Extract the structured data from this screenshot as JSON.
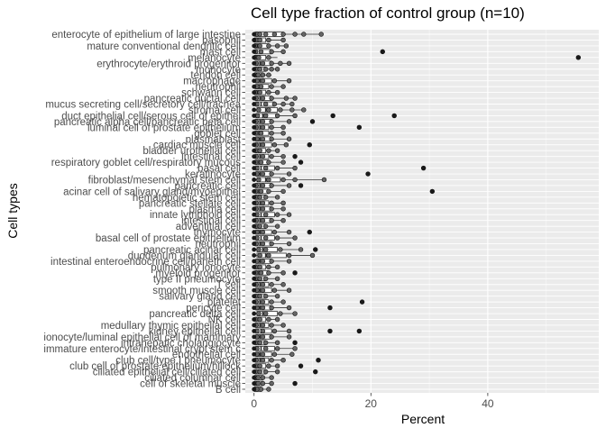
{
  "chart_data": {
    "type": "boxplot",
    "title": "Cell type fraction of control group (n=10)",
    "xlabel": "Percent",
    "ylabel": "Cell types",
    "xlim": [
      -1.5,
      59
    ],
    "xticks": [
      0,
      20,
      40
    ],
    "grid": true,
    "background": "#ebebeb",
    "categories_top_to_bottom": [
      "enterocyte of epithelium of large intestine",
      "basophil",
      "mature conventional dendritic cell",
      "mast cell",
      "melanocyte",
      "erythrocyte/erythroid progenitor",
      "monocyte",
      "tendon cell",
      "macrophage",
      "neutrophil",
      "schwann cell",
      "pancreatic ductal cell",
      "mucus secreting cell/secretory cell/trachea",
      "stromal cell",
      "duct epithelial cell/serous cell of epithel",
      "pancreatic alpha cell/pancreatic beta cell",
      "luminal cell of prostate epithelium",
      "goblet cell",
      "plasmablast",
      "cardiac muscle cell",
      "bladder urothelial cell",
      "intestinal cell",
      "respiratory goblet cell/respiratory mucous",
      "basal cell",
      "keratinocyte",
      "fibroblast/mesenchymal stem cell",
      "pancreatic cell",
      "acinar cell of salivary gland/myoepithel",
      "hematopoietic stem cell",
      "pancreatic stellate cell",
      "plasma cell",
      "innate lymphoid cell",
      "intestinal cell",
      "adventitial cell",
      "thymocyte",
      "basal cell of prostate epithelium",
      "neutrophil",
      "pancreatic acinar cell",
      "duodenum glandular cell",
      "intestinal enteroendocrine cell/paneth cell",
      "pulmonary ionocyte",
      "myeloid progenitor",
      "type II pneumocyte",
      "T cell",
      "smooth muscle cell",
      "salivary gland cell",
      "platelet",
      "pericyte cell",
      "pancreatic delta cell",
      "NK cell",
      "medullary thymic epithelial cell",
      "kidney epithelial cell",
      "ionocyte/luminal epithelial cell of mammary",
      "intrahepatic cholangiocyte",
      "immature enterocyte/intestinal crypt stem c",
      "endothelial cell",
      "club cell/type I pneumocyte",
      "club cell of prostate epithelium/hillock",
      "ciliated epithelial cell/ciliated cell",
      "ciliated columnar cell",
      "cell of skeletal muscle",
      "B cell"
    ],
    "series": [
      {
        "q1": 0.3,
        "median": 1.0,
        "q3": 5.0,
        "whisker_low": 0.0,
        "whisker_high": 11.5,
        "points": [
          0.2,
          0.5,
          1.0,
          2.0,
          3.5,
          5.0,
          7.0,
          8.5,
          11.5
        ]
      },
      {
        "q1": 0.1,
        "median": 0.5,
        "q3": 2.0,
        "whisker_low": 0.0,
        "whisker_high": 5.0,
        "points": [
          0.1,
          0.4,
          1.0,
          2.5,
          5.0
        ]
      },
      {
        "q1": 0.1,
        "median": 0.6,
        "q3": 2.5,
        "whisker_low": 0.0,
        "whisker_high": 5.5,
        "points": [
          0.2,
          1.0,
          2.5,
          4.0,
          5.5
        ]
      },
      {
        "q1": 0.2,
        "median": 1.0,
        "q3": 3.0,
        "whisker_low": 0.0,
        "whisker_high": 5.0,
        "points": [
          0.3,
          1.2,
          3.0,
          5.0,
          22.0
        ]
      },
      {
        "q1": 0.1,
        "median": 0.5,
        "q3": 2.0,
        "whisker_low": 0.0,
        "whisker_high": 4.0,
        "points": [
          0.2,
          0.8,
          2.5,
          55.5
        ]
      },
      {
        "q1": 0.2,
        "median": 1.0,
        "q3": 3.0,
        "whisker_low": 0.0,
        "whisker_high": 6.0,
        "points": [
          0.4,
          1.5,
          3.0,
          4.5,
          6.0
        ]
      },
      {
        "q1": 0.2,
        "median": 0.8,
        "q3": 2.0,
        "whisker_low": 0.0,
        "whisker_high": 4.0,
        "points": [
          0.3,
          1.0,
          2.0,
          3.0,
          4.0
        ]
      },
      {
        "q1": 0.1,
        "median": 0.5,
        "q3": 1.5,
        "whisker_low": 0.0,
        "whisker_high": 3.0,
        "points": [
          0.2,
          0.7,
          1.5,
          2.5
        ]
      },
      {
        "q1": 0.3,
        "median": 1.0,
        "q3": 3.0,
        "whisker_low": 0.0,
        "whisker_high": 6.0,
        "points": [
          0.5,
          1.5,
          3.5,
          6.0
        ]
      },
      {
        "q1": 0.2,
        "median": 0.8,
        "q3": 2.5,
        "whisker_low": 0.0,
        "whisker_high": 5.0,
        "points": [
          0.5,
          1.2,
          3.0,
          5.0
        ]
      },
      {
        "q1": 0.1,
        "median": 0.6,
        "q3": 2.0,
        "whisker_low": 0.0,
        "whisker_high": 4.0,
        "points": [
          0.2,
          1.0,
          2.5,
          4.0
        ]
      },
      {
        "q1": 0.2,
        "median": 1.0,
        "q3": 3.0,
        "whisker_low": 0.0,
        "whisker_high": 7.0,
        "points": [
          0.4,
          1.5,
          3.0,
          5.5,
          7.0
        ]
      },
      {
        "q1": 0.3,
        "median": 1.2,
        "q3": 3.5,
        "whisker_low": 0.0,
        "whisker_high": 6.5,
        "points": [
          0.5,
          2.0,
          3.5,
          5.0,
          6.5
        ]
      },
      {
        "q1": 0.5,
        "median": 2.0,
        "q3": 4.0,
        "whisker_low": 0.0,
        "whisker_high": 8.5,
        "points": [
          0.8,
          2.5,
          4.5,
          6.5,
          8.5
        ]
      },
      {
        "q1": 0.3,
        "median": 1.5,
        "q3": 4.0,
        "whisker_low": 0.0,
        "whisker_high": 7.0,
        "points": [
          0.6,
          2.0,
          4.0,
          7.0,
          13.5,
          24.0
        ]
      },
      {
        "q1": 0.2,
        "median": 1.0,
        "q3": 3.0,
        "whisker_low": 0.0,
        "whisker_high": 6.0,
        "points": [
          0.4,
          1.5,
          3.0,
          6.0,
          10.0
        ]
      },
      {
        "q1": 0.2,
        "median": 1.0,
        "q3": 2.5,
        "whisker_low": 0.0,
        "whisker_high": 5.0,
        "points": [
          0.4,
          1.5,
          3.0,
          5.0,
          18.0
        ]
      },
      {
        "q1": 0.2,
        "median": 0.8,
        "q3": 2.5,
        "whisker_low": 0.0,
        "whisker_high": 5.0,
        "points": [
          0.3,
          1.2,
          3.0,
          5.0
        ]
      },
      {
        "q1": 0.3,
        "median": 1.0,
        "q3": 3.0,
        "whisker_low": 0.0,
        "whisker_high": 6.0,
        "points": [
          0.5,
          1.5,
          3.0,
          6.0
        ]
      },
      {
        "q1": 0.2,
        "median": 1.0,
        "q3": 3.0,
        "whisker_low": 0.0,
        "whisker_high": 5.5,
        "points": [
          0.4,
          1.5,
          3.5,
          5.5,
          9.5
        ]
      },
      {
        "q1": 0.2,
        "median": 0.8,
        "q3": 2.0,
        "whisker_low": 0.0,
        "whisker_high": 4.0,
        "points": [
          0.3,
          1.0,
          2.5,
          4.0
        ]
      },
      {
        "q1": 0.2,
        "median": 1.0,
        "q3": 2.5,
        "whisker_low": 0.0,
        "whisker_high": 5.0,
        "points": [
          0.4,
          1.5,
          3.0,
          5.0,
          7.0
        ]
      },
      {
        "q1": 0.2,
        "median": 0.8,
        "q3": 2.5,
        "whisker_low": 0.0,
        "whisker_high": 5.0,
        "points": [
          0.3,
          1.2,
          2.5,
          5.0,
          8.0
        ]
      },
      {
        "q1": 0.3,
        "median": 1.2,
        "q3": 3.5,
        "whisker_low": 0.0,
        "whisker_high": 7.0,
        "points": [
          0.5,
          2.0,
          4.0,
          7.0,
          29.0
        ]
      },
      {
        "q1": 0.3,
        "median": 1.0,
        "q3": 3.0,
        "whisker_low": 0.0,
        "whisker_high": 6.0,
        "points": [
          0.5,
          1.5,
          3.0,
          6.0,
          19.5
        ]
      },
      {
        "q1": 0.5,
        "median": 2.0,
        "q3": 4.5,
        "whisker_low": 0.0,
        "whisker_high": 12.0,
        "points": [
          0.8,
          2.5,
          5.0,
          7.0,
          12.0
        ]
      },
      {
        "q1": 0.2,
        "median": 1.0,
        "q3": 3.0,
        "whisker_low": 0.0,
        "whisker_high": 6.0,
        "points": [
          0.4,
          1.5,
          3.0,
          6.0,
          8.0
        ]
      },
      {
        "q1": 0.2,
        "median": 0.8,
        "q3": 2.5,
        "whisker_low": 0.0,
        "whisker_high": 5.0,
        "points": [
          0.3,
          1.2,
          2.5,
          5.0,
          30.5
        ]
      },
      {
        "q1": 0.2,
        "median": 0.8,
        "q3": 2.0,
        "whisker_low": 0.0,
        "whisker_high": 4.0,
        "points": [
          0.3,
          1.0,
          2.0,
          4.0
        ]
      },
      {
        "q1": 0.2,
        "median": 1.0,
        "q3": 2.5,
        "whisker_low": 0.0,
        "whisker_high": 5.0,
        "points": [
          0.4,
          1.5,
          3.0,
          5.0
        ]
      },
      {
        "q1": 0.2,
        "median": 1.0,
        "q3": 3.0,
        "whisker_low": 0.0,
        "whisker_high": 5.0,
        "points": [
          0.4,
          1.5,
          3.0,
          5.0
        ]
      },
      {
        "q1": 0.3,
        "median": 1.2,
        "q3": 3.5,
        "whisker_low": 0.0,
        "whisker_high": 6.0,
        "points": [
          0.5,
          2.0,
          4.0,
          6.0
        ]
      },
      {
        "q1": 0.2,
        "median": 1.0,
        "q3": 3.0,
        "whisker_low": 0.0,
        "whisker_high": 5.0,
        "points": [
          0.4,
          1.5,
          3.0,
          5.0
        ]
      },
      {
        "q1": 0.2,
        "median": 0.8,
        "q3": 2.0,
        "whisker_low": 0.0,
        "whisker_high": 4.0,
        "points": [
          0.3,
          1.0,
          2.0,
          4.0
        ]
      },
      {
        "q1": 0.3,
        "median": 1.0,
        "q3": 3.0,
        "whisker_low": 0.0,
        "whisker_high": 6.0,
        "points": [
          0.5,
          1.5,
          3.5,
          6.0,
          9.5
        ]
      },
      {
        "q1": 0.3,
        "median": 1.2,
        "q3": 3.5,
        "whisker_low": 0.0,
        "whisker_high": 7.0,
        "points": [
          0.5,
          2.0,
          4.0,
          7.0
        ]
      },
      {
        "q1": 0.2,
        "median": 1.0,
        "q3": 3.0,
        "whisker_low": 0.0,
        "whisker_high": 6.0,
        "points": [
          0.4,
          1.5,
          3.0,
          6.0
        ]
      },
      {
        "q1": 0.5,
        "median": 1.5,
        "q3": 4.0,
        "whisker_low": 0.0,
        "whisker_high": 8.0,
        "points": [
          0.8,
          2.0,
          4.5,
          8.0,
          10.5
        ]
      },
      {
        "q1": 0.5,
        "median": 2.0,
        "q3": 5.5,
        "whisker_low": 0.0,
        "whisker_high": 10.0,
        "points": [
          1.0,
          2.5,
          6.0,
          10.0
        ]
      },
      {
        "q1": 0.3,
        "median": 1.0,
        "q3": 3.0,
        "whisker_low": 0.0,
        "whisker_high": 6.0,
        "points": [
          0.5,
          1.5,
          3.0,
          6.0
        ]
      },
      {
        "q1": 0.2,
        "median": 0.8,
        "q3": 2.0,
        "whisker_low": 0.0,
        "whisker_high": 4.0,
        "points": [
          0.3,
          1.0,
          2.5,
          4.0
        ]
      },
      {
        "q1": 0.2,
        "median": 0.8,
        "q3": 2.5,
        "whisker_low": 0.0,
        "whisker_high": 5.0,
        "points": [
          0.3,
          1.2,
          2.5,
          5.0,
          7.0
        ]
      },
      {
        "q1": 0.2,
        "median": 0.8,
        "q3": 2.0,
        "whisker_low": 0.0,
        "whisker_high": 4.0,
        "points": [
          0.3,
          1.0,
          2.0,
          4.0
        ]
      },
      {
        "q1": 0.2,
        "median": 1.0,
        "q3": 2.5,
        "whisker_low": 0.0,
        "whisker_high": 5.0,
        "points": [
          0.4,
          1.5,
          3.0,
          5.0
        ]
      },
      {
        "q1": 0.3,
        "median": 1.0,
        "q3": 3.0,
        "whisker_low": 0.0,
        "whisker_high": 6.0,
        "points": [
          0.5,
          1.5,
          3.5,
          6.0
        ]
      },
      {
        "q1": 0.2,
        "median": 0.8,
        "q3": 2.0,
        "whisker_low": 0.0,
        "whisker_high": 4.0,
        "points": [
          0.3,
          1.0,
          2.0,
          4.0
        ]
      },
      {
        "q1": 0.2,
        "median": 1.0,
        "q3": 2.5,
        "whisker_low": 0.0,
        "whisker_high": 5.0,
        "points": [
          0.4,
          1.5,
          3.0,
          5.0,
          18.5
        ]
      },
      {
        "q1": 0.3,
        "median": 1.0,
        "q3": 3.0,
        "whisker_low": 0.0,
        "whisker_high": 6.0,
        "points": [
          0.5,
          1.5,
          3.0,
          6.0,
          13.0
        ]
      },
      {
        "q1": 0.5,
        "median": 1.5,
        "q3": 4.0,
        "whisker_low": 0.0,
        "whisker_high": 7.0,
        "points": [
          0.8,
          2.0,
          4.5,
          7.0
        ]
      },
      {
        "q1": 0.2,
        "median": 0.8,
        "q3": 2.0,
        "whisker_low": 0.0,
        "whisker_high": 4.0,
        "points": [
          0.3,
          1.0,
          2.5,
          4.0
        ]
      },
      {
        "q1": 0.2,
        "median": 1.0,
        "q3": 2.5,
        "whisker_low": 0.0,
        "whisker_high": 5.0,
        "points": [
          0.4,
          1.5,
          3.0,
          5.0
        ]
      },
      {
        "q1": 0.3,
        "median": 1.2,
        "q3": 3.0,
        "whisker_low": 0.0,
        "whisker_high": 6.0,
        "points": [
          0.5,
          1.5,
          3.5,
          6.0,
          13.0,
          18.0
        ]
      },
      {
        "q1": 0.3,
        "median": 1.0,
        "q3": 3.0,
        "whisker_low": 0.0,
        "whisker_high": 6.0,
        "points": [
          0.5,
          1.5,
          3.0,
          6.0
        ]
      },
      {
        "q1": 0.2,
        "median": 0.8,
        "q3": 2.0,
        "whisker_low": 0.0,
        "whisker_high": 4.0,
        "points": [
          0.3,
          1.0,
          2.0,
          4.0,
          7.0
        ]
      },
      {
        "q1": 0.3,
        "median": 1.2,
        "q3": 3.5,
        "whisker_low": 0.0,
        "whisker_high": 7.0,
        "points": [
          0.5,
          2.0,
          4.0,
          7.0
        ]
      },
      {
        "q1": 0.3,
        "median": 1.0,
        "q3": 3.0,
        "whisker_low": 0.0,
        "whisker_high": 6.5,
        "points": [
          0.5,
          1.5,
          3.5,
          6.5
        ]
      },
      {
        "q1": 0.2,
        "median": 1.0,
        "q3": 2.5,
        "whisker_low": 0.0,
        "whisker_high": 5.0,
        "points": [
          0.4,
          1.5,
          3.0,
          5.0,
          11.0
        ]
      },
      {
        "q1": 0.2,
        "median": 0.8,
        "q3": 2.0,
        "whisker_low": 0.0,
        "whisker_high": 4.0,
        "points": [
          0.3,
          1.0,
          2.5,
          4.0,
          8.0
        ]
      },
      {
        "q1": 0.2,
        "median": 0.8,
        "q3": 2.0,
        "whisker_low": 0.0,
        "whisker_high": 4.0,
        "points": [
          0.3,
          1.0,
          2.0,
          4.0,
          10.5
        ]
      },
      {
        "q1": 0.1,
        "median": 0.5,
        "q3": 1.5,
        "whisker_low": 0.0,
        "whisker_high": 3.0,
        "points": [
          0.2,
          0.7,
          1.5,
          3.0
        ]
      },
      {
        "q1": 0.1,
        "median": 0.5,
        "q3": 1.5,
        "whisker_low": 0.0,
        "whisker_high": 3.0,
        "points": [
          0.2,
          0.7,
          1.5,
          3.0,
          7.0
        ]
      },
      {
        "q1": 0.1,
        "median": 0.4,
        "q3": 1.2,
        "whisker_low": 0.0,
        "whisker_high": 2.5,
        "points": [
          0.1,
          0.5,
          1.2,
          2.5
        ]
      }
    ]
  },
  "colors": {
    "panel_background": "#ebebeb",
    "grid_major": "#ffffff",
    "box_fill": "#ffffff",
    "box_stroke": "#333333",
    "point_fill": "#666666",
    "outlier_fill": "#1a1a1a",
    "text": "#4d4d4d"
  }
}
